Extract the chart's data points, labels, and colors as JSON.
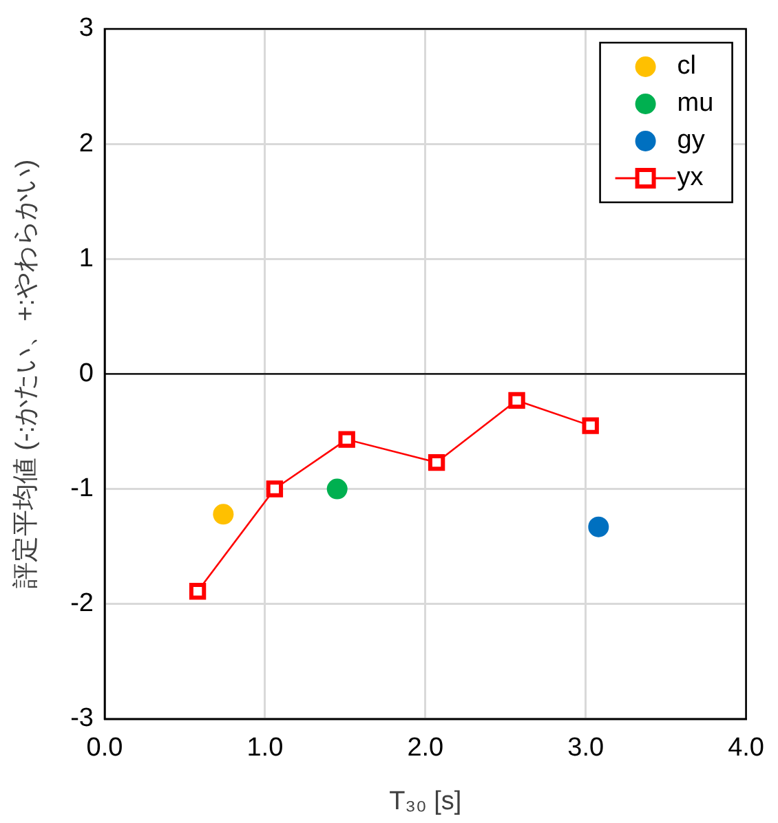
{
  "chart_data": {
    "type": "scatter",
    "ylabel": "評定平均値 (-:かたい、+:やわらかい)",
    "xlabel": "T₃₀ [s]",
    "xlim": [
      0,
      4
    ],
    "xticks": [
      {
        "value": 0,
        "label": "0.0"
      },
      {
        "value": 1,
        "label": "1.0"
      },
      {
        "value": 2,
        "label": "2.0"
      },
      {
        "value": 3,
        "label": "3.0"
      },
      {
        "value": 4,
        "label": "4.0"
      }
    ],
    "ylim": [
      -3,
      3
    ],
    "yticks": [
      -3,
      -2,
      -1,
      0,
      1,
      2,
      3
    ],
    "grid": true,
    "legend": "top right",
    "ref_lines": [
      {
        "axis": "y",
        "value": 0,
        "color": "#000000"
      }
    ],
    "series": [
      {
        "name": "cl",
        "marker": "circle",
        "color": "#ffc000",
        "x": [
          0.74
        ],
        "values": [
          -1.22
        ]
      },
      {
        "name": "mu",
        "marker": "circle",
        "color": "#00b050",
        "x": [
          1.45
        ],
        "values": [
          -1.0
        ]
      },
      {
        "name": "gy",
        "marker": "circle",
        "color": "#0070c0",
        "x": [
          3.08
        ],
        "values": [
          -1.33
        ]
      },
      {
        "name": "yx",
        "type": "line",
        "marker": "square",
        "color": "#ff0000",
        "x": [
          0.58,
          1.06,
          1.51,
          2.07,
          2.57,
          3.03
        ],
        "values": [
          -1.89,
          -1.0,
          -0.57,
          -0.77,
          -0.23,
          -0.45
        ]
      }
    ]
  }
}
